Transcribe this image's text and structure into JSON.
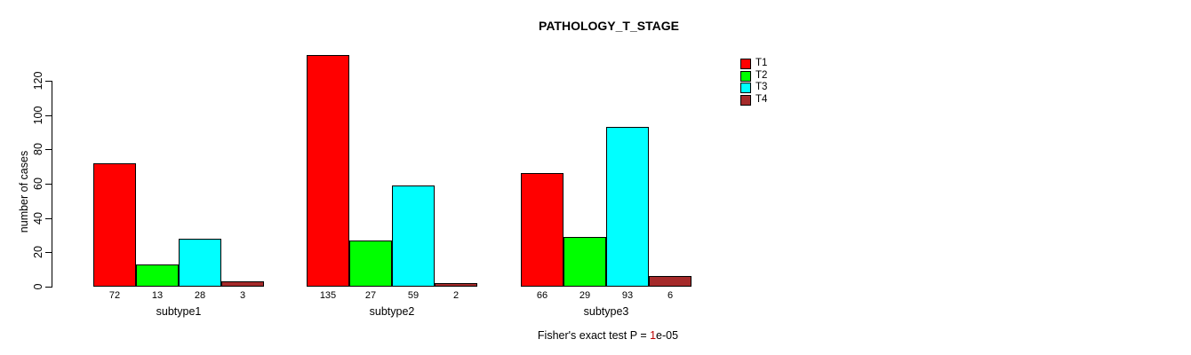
{
  "title": "PATHOLOGY_T_STAGE",
  "footer": {
    "prefix": "Fisher's exact test P = ",
    "p_first": "1",
    "p_rest": "e-05",
    "highlight_color": "#bb0000"
  },
  "chart_data": {
    "type": "bar",
    "title": "PATHOLOGY_T_STAGE",
    "xlabel": "",
    "ylabel": "number of cases",
    "categories": [
      "subtype1",
      "subtype2",
      "subtype3"
    ],
    "series": [
      {
        "name": "T1",
        "color": "#ff0000",
        "values": [
          72,
          135,
          66
        ]
      },
      {
        "name": "T2",
        "color": "#00ff00",
        "values": [
          13,
          27,
          29
        ]
      },
      {
        "name": "T3",
        "color": "#00ffff",
        "values": [
          28,
          59,
          93
        ]
      },
      {
        "name": "T4",
        "color": "#a52a2a",
        "values": [
          3,
          2,
          6
        ]
      }
    ],
    "yticks": [
      0,
      20,
      40,
      60,
      80,
      100,
      120
    ],
    "ylim": [
      0,
      135
    ],
    "bar_labels_shown": true,
    "grid": false,
    "legend_position": "right",
    "legend_entries": [
      "T1",
      "T2",
      "T3",
      "T4"
    ],
    "annotation": "Fisher's exact test P = 1e-05"
  }
}
